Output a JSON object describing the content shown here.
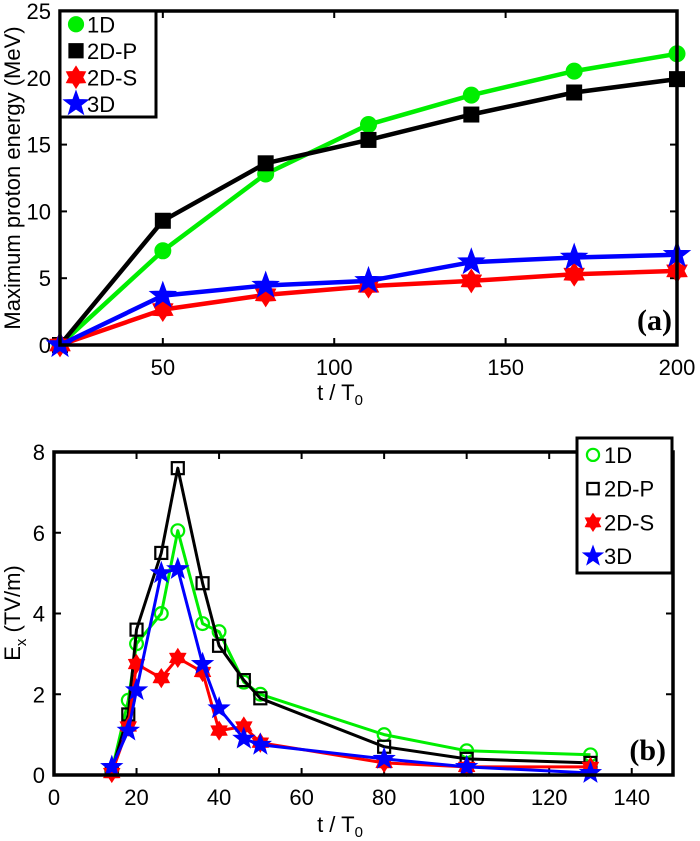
{
  "chart_data": [
    {
      "type": "line",
      "panel_label": "(a)",
      "xlabel": "t / T",
      "xlabel_sub": "0",
      "ylabel": "Maximum proton energy (MeV)",
      "xlim": [
        20,
        200
      ],
      "ylim": [
        0,
        25
      ],
      "xticks": [
        50,
        100,
        150,
        200
      ],
      "yticks": [
        0,
        5,
        10,
        15,
        20,
        25
      ],
      "grid": false,
      "legend_position": "top-left",
      "x": [
        20,
        50,
        80,
        110,
        140,
        170,
        200
      ],
      "series": [
        {
          "name": "1D",
          "color": "#00ee00",
          "marker": "circle",
          "filled": true,
          "values": [
            0,
            7.05,
            12.8,
            16.5,
            18.7,
            20.5,
            21.8
          ]
        },
        {
          "name": "2D-P",
          "color": "#000000",
          "marker": "square",
          "filled": true,
          "values": [
            0,
            9.3,
            13.6,
            15.35,
            17.25,
            18.9,
            19.9
          ]
        },
        {
          "name": "2D-S",
          "color": "#ff0000",
          "marker": "hexagram",
          "filled": true,
          "values": [
            0,
            2.65,
            3.75,
            4.4,
            4.8,
            5.3,
            5.55
          ]
        },
        {
          "name": "3D",
          "color": "#0000ff",
          "marker": "pentagram",
          "filled": true,
          "values": [
            0,
            3.7,
            4.45,
            4.8,
            6.2,
            6.55,
            6.75
          ]
        }
      ]
    },
    {
      "type": "line",
      "panel_label": "(b)",
      "xlabel": "t / T",
      "xlabel_sub": "0",
      "ylabel": "E",
      "ylabel_sub": "x",
      "ylabel_unit": " (TV/m)",
      "xlim": [
        0,
        150
      ],
      "ylim": [
        0,
        8
      ],
      "xticks": [
        0,
        20,
        40,
        60,
        80,
        100,
        120,
        140
      ],
      "yticks": [
        0,
        2,
        4,
        6,
        8
      ],
      "grid": false,
      "legend_position": "top-right",
      "x": [
        14,
        18,
        20,
        26,
        30,
        36,
        40,
        46,
        50,
        80,
        100,
        130
      ],
      "series": [
        {
          "name": "1D",
          "color": "#00ee00",
          "marker": "circle",
          "filled": false,
          "values": [
            0.1,
            1.85,
            3.25,
            4.0,
            6.05,
            3.75,
            3.55,
            2.3,
            2.0,
            1.0,
            0.6,
            0.5
          ]
        },
        {
          "name": "2D-P",
          "color": "#000000",
          "marker": "square",
          "filled": false,
          "values": [
            0.1,
            1.5,
            3.6,
            5.5,
            7.6,
            4.75,
            3.2,
            2.35,
            1.9,
            0.7,
            0.4,
            0.3
          ]
        },
        {
          "name": "2D-S",
          "color": "#ff0000",
          "marker": "hexagram",
          "filled": true,
          "values": [
            0.05,
            1.2,
            2.75,
            2.4,
            2.9,
            2.55,
            1.1,
            1.2,
            0.8,
            0.3,
            0.2,
            0.2
          ]
        },
        {
          "name": "3D",
          "color": "#0000ff",
          "marker": "pentagram",
          "filled": true,
          "values": [
            0.2,
            1.1,
            2.1,
            5.0,
            5.1,
            2.75,
            1.65,
            0.9,
            0.75,
            0.4,
            0.2,
            0.05
          ]
        }
      ]
    }
  ]
}
